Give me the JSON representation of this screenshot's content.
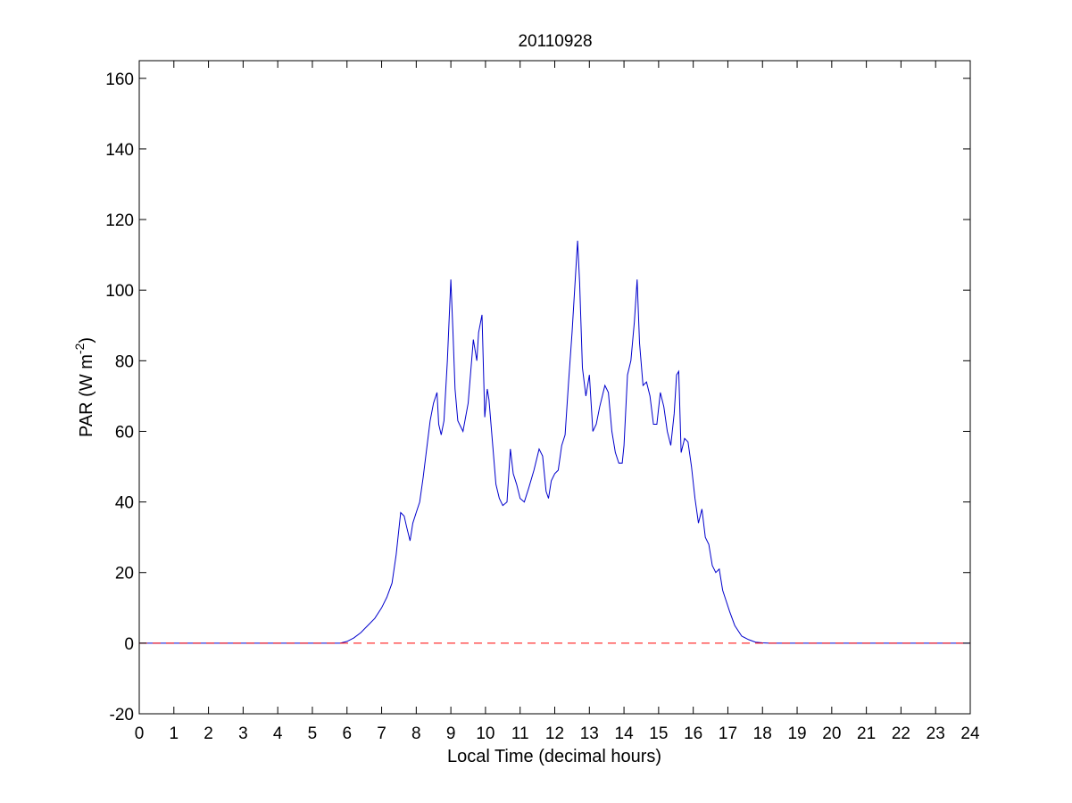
{
  "chart_data": {
    "type": "line",
    "title": "20110928",
    "xlabel": "Local Time (decimal hours)",
    "ylabel": "PAR (W m",
    "ylabel_sup": "-2",
    "ylabel_end": ")",
    "xlim": [
      0,
      24
    ],
    "ylim": [
      -20,
      165
    ],
    "grid": false,
    "legend": "none",
    "x_ticks": [
      "0",
      "1",
      "2",
      "3",
      "4",
      "5",
      "6",
      "7",
      "8",
      "9",
      "10",
      "11",
      "12",
      "13",
      "14",
      "15",
      "16",
      "17",
      "18",
      "19",
      "20",
      "21",
      "22",
      "23",
      "24"
    ],
    "y_ticks": [
      "-20",
      "0",
      "20",
      "40",
      "60",
      "80",
      "100",
      "120",
      "140",
      "160"
    ],
    "series": [
      {
        "color": "#0000cc",
        "style": "solid",
        "x": [
          0,
          5.8,
          6.0,
          6.2,
          6.4,
          6.6,
          6.8,
          7.0,
          7.15,
          7.3,
          7.42,
          7.55,
          7.65,
          7.72,
          7.82,
          7.9,
          8.0,
          8.1,
          8.2,
          8.3,
          8.4,
          8.5,
          8.6,
          8.65,
          8.72,
          8.8,
          8.9,
          9.0,
          9.06,
          9.12,
          9.2,
          9.35,
          9.5,
          9.65,
          9.75,
          9.8,
          9.9,
          9.98,
          10.05,
          10.1,
          10.2,
          10.3,
          10.4,
          10.5,
          10.62,
          10.72,
          10.8,
          10.9,
          11.0,
          11.12,
          11.25,
          11.4,
          11.55,
          11.65,
          11.75,
          11.82,
          11.9,
          12.0,
          12.1,
          12.2,
          12.3,
          12.4,
          12.5,
          12.58,
          12.66,
          12.72,
          12.8,
          12.9,
          13.0,
          13.1,
          13.2,
          13.3,
          13.45,
          13.55,
          13.65,
          13.75,
          13.85,
          13.95,
          14.0,
          14.1,
          14.2,
          14.3,
          14.38,
          14.45,
          14.55,
          14.65,
          14.75,
          14.85,
          14.95,
          15.05,
          15.15,
          15.25,
          15.35,
          15.45,
          15.52,
          15.58,
          15.65,
          15.75,
          15.85,
          15.95,
          16.05,
          16.15,
          16.25,
          16.35,
          16.45,
          16.55,
          16.65,
          16.75,
          16.85,
          16.95,
          17.05,
          17.2,
          17.4,
          17.6,
          17.8,
          18.0,
          18.2,
          18.5,
          24
        ],
        "y": [
          0,
          0,
          0.5,
          1.5,
          3,
          5,
          7,
          10,
          13,
          17,
          25,
          37,
          36,
          33,
          29,
          34,
          37,
          40,
          47,
          55,
          63,
          68,
          71,
          62,
          59,
          63,
          80,
          103,
          88,
          72,
          63,
          60,
          68,
          86,
          80,
          88,
          93,
          64,
          72,
          69,
          57,
          45,
          41,
          39,
          40,
          55,
          48,
          45,
          41,
          40,
          44,
          49,
          55,
          53,
          43,
          41,
          46,
          48,
          49,
          56,
          59,
          74,
          88,
          101,
          114,
          102,
          78,
          70,
          76,
          60,
          62,
          67,
          73,
          71,
          60,
          54,
          51,
          51,
          56,
          76,
          80,
          91,
          103,
          85,
          73,
          74,
          70,
          62,
          62,
          71,
          67,
          60,
          56,
          65,
          76,
          77,
          54,
          58,
          57,
          50,
          41,
          34,
          38,
          30,
          28,
          22,
          20,
          21,
          15,
          12,
          9,
          5,
          2,
          1,
          0.3,
          0.1,
          0,
          0,
          0
        ]
      },
      {
        "color": "#ff0000",
        "style": "dashed",
        "x": [
          0,
          24
        ],
        "y": [
          0,
          0
        ]
      }
    ]
  }
}
